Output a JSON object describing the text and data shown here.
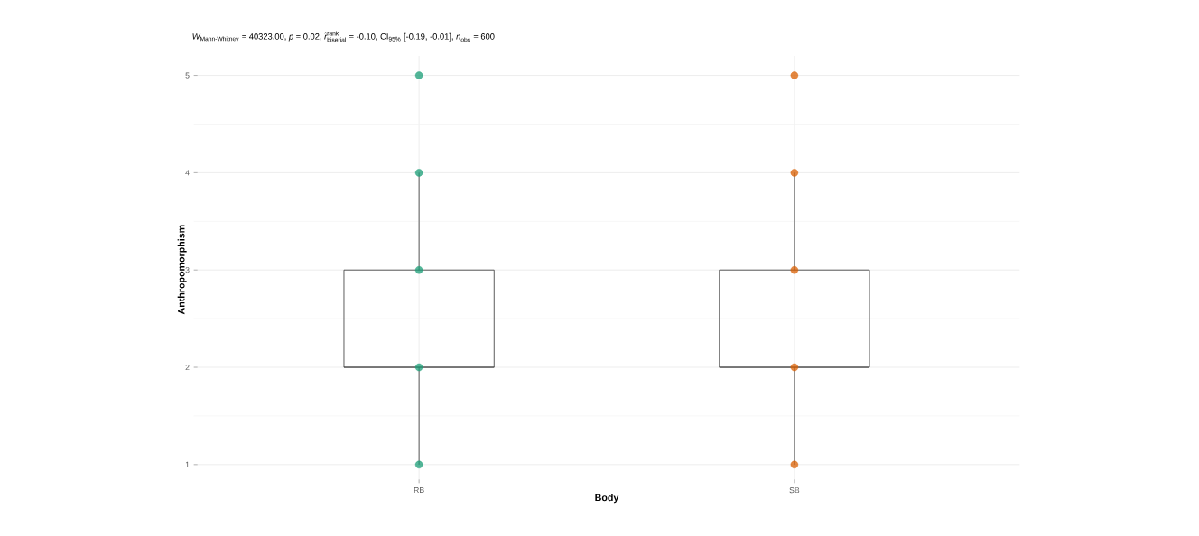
{
  "chart_data": {
    "type": "box",
    "title": "\\text{\\itshape W}_{\\text{Mann-Whitney}}\\text{ = 40323.00, \\itshape p\\upshape{} = 0.02, }\\hat{\\text{\\itshape r}}_{\\text{biserial}}^{\\text{rank}}\\text{ = -0.10, CI}_{\\text{95\\%}}\\text{ [-0.19, -0.01], \\itshape n}_{\\text{obs}}\\text{ = 600}",
    "xlabel": "Body",
    "ylabel": "Anthropomorphism",
    "categories": [
      "RB",
      "SB"
    ],
    "boxes": [
      {
        "low": 1,
        "q1": 2,
        "median": 2,
        "q3": 3,
        "high": 4
      },
      {
        "low": 1,
        "q1": 2,
        "median": 2,
        "q3": 3,
        "high": 4
      }
    ],
    "series": [
      {
        "type": "scatter",
        "color": "#1b9e77",
        "x": [
          "RB",
          "RB",
          "RB",
          "RB",
          "RB"
        ],
        "values": [
          1,
          2,
          3,
          4,
          5
        ]
      },
      {
        "type": "scatter",
        "color": "#d95f02",
        "x": [
          "SB",
          "SB",
          "SB",
          "SB",
          "SB"
        ],
        "values": [
          1,
          2,
          3,
          4,
          5
        ]
      }
    ],
    "ylim": [
      0.81,
      5.2
    ],
    "yticks": [
      1,
      2,
      3,
      4,
      5
    ],
    "grid": true
  }
}
